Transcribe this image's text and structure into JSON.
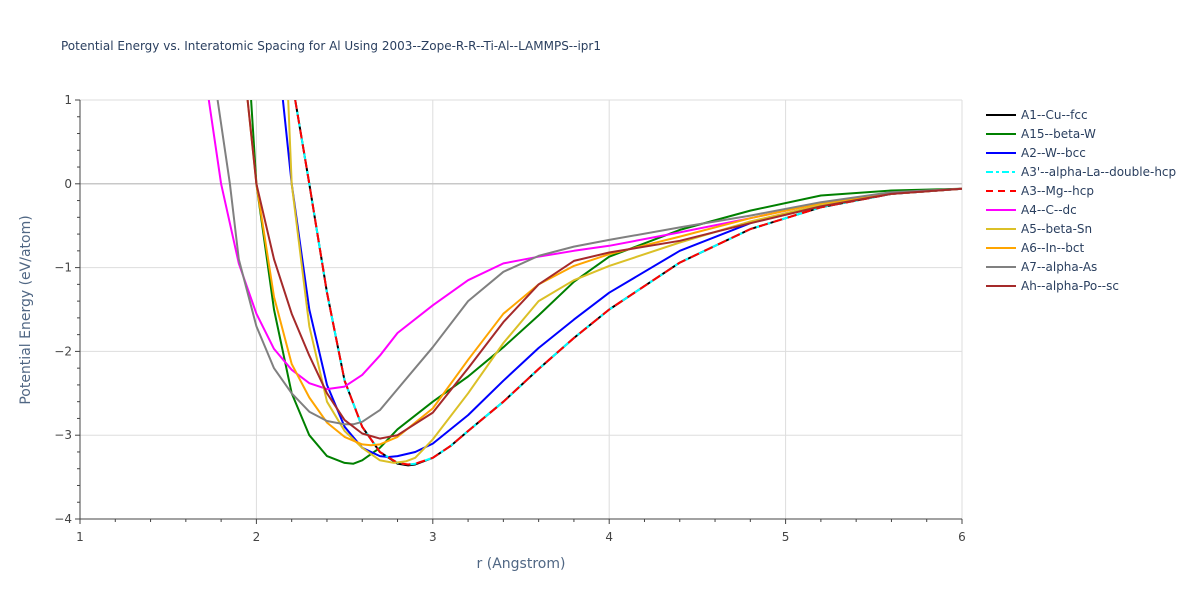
{
  "chart_data": {
    "type": "line",
    "title": "Potential Energy vs. Interatomic Spacing for Al Using 2003--Zope-R-R--Ti-Al--LAMMPS--ipr1",
    "xlabel": "r (Angstrom)",
    "ylabel": "Potential Energy (eV/atom)",
    "xlim": [
      1,
      6
    ],
    "ylim": [
      -4,
      1
    ],
    "xticks": [
      1,
      2,
      3,
      4,
      5,
      6
    ],
    "yticks": [
      1,
      0,
      -1,
      -2,
      -3,
      -4
    ],
    "ytick_labels": [
      "1",
      "0",
      "−1",
      "−2",
      "−3",
      "−4"
    ],
    "grid": true,
    "legend_position": "right",
    "series": [
      {
        "name": "A1--Cu--fcc",
        "color": "#000000",
        "dash": "solid",
        "x": [
          2.22,
          2.3,
          2.4,
          2.5,
          2.6,
          2.7,
          2.8,
          2.86,
          2.9,
          3.0,
          3.1,
          3.2,
          3.4,
          3.6,
          3.8,
          4.0,
          4.4,
          4.8,
          5.2,
          5.6,
          6.0
        ],
        "y": [
          1.0,
          0.0,
          -1.3,
          -2.35,
          -2.9,
          -3.2,
          -3.34,
          -3.36,
          -3.35,
          -3.27,
          -3.13,
          -2.95,
          -2.6,
          -2.21,
          -1.84,
          -1.5,
          -0.94,
          -0.54,
          -0.28,
          -0.12,
          -0.06
        ]
      },
      {
        "name": "A15--beta-W",
        "color": "#008000",
        "dash": "solid",
        "x": [
          1.97,
          2.0,
          2.1,
          2.2,
          2.3,
          2.4,
          2.5,
          2.55,
          2.6,
          2.7,
          2.8,
          3.0,
          3.2,
          3.4,
          3.6,
          3.8,
          4.0,
          4.4,
          4.8,
          5.2,
          5.6,
          6.0
        ],
        "y": [
          1.0,
          0.0,
          -1.5,
          -2.5,
          -3.0,
          -3.25,
          -3.33,
          -3.34,
          -3.3,
          -3.15,
          -2.93,
          -2.6,
          -2.3,
          -1.95,
          -1.57,
          -1.17,
          -0.87,
          -0.55,
          -0.32,
          -0.14,
          -0.08,
          -0.06
        ]
      },
      {
        "name": "A2--W--bcc",
        "color": "#0000ff",
        "dash": "solid",
        "x": [
          2.15,
          2.2,
          2.3,
          2.4,
          2.5,
          2.6,
          2.7,
          2.75,
          2.8,
          2.9,
          3.0,
          3.2,
          3.4,
          3.6,
          3.8,
          4.0,
          4.4,
          4.8,
          5.2,
          5.6,
          6.0
        ],
        "y": [
          1.0,
          0.0,
          -1.5,
          -2.4,
          -2.9,
          -3.15,
          -3.25,
          -3.26,
          -3.25,
          -3.2,
          -3.1,
          -2.76,
          -2.35,
          -1.96,
          -1.62,
          -1.3,
          -0.8,
          -0.47,
          -0.25,
          -0.12,
          -0.06
        ]
      },
      {
        "name": "A3'--alpha-La--double-hcp",
        "color": "#00ffff",
        "dash": "dashdot",
        "x": [
          2.22,
          2.3,
          2.4,
          2.5,
          2.6,
          2.7,
          2.8,
          2.86,
          2.9,
          3.0,
          3.1,
          3.2,
          3.4,
          3.6,
          3.8,
          4.0,
          4.4,
          4.8,
          5.2,
          5.6,
          6.0
        ],
        "y": [
          1.0,
          0.0,
          -1.3,
          -2.35,
          -2.9,
          -3.2,
          -3.33,
          -3.35,
          -3.34,
          -3.27,
          -3.13,
          -2.95,
          -2.6,
          -2.21,
          -1.84,
          -1.5,
          -0.94,
          -0.54,
          -0.28,
          -0.12,
          -0.06
        ]
      },
      {
        "name": "A3--Mg--hcp",
        "color": "#ff0000",
        "dash": "dash",
        "x": [
          2.22,
          2.3,
          2.4,
          2.5,
          2.6,
          2.7,
          2.8,
          2.86,
          2.9,
          3.0,
          3.1,
          3.2,
          3.4,
          3.6,
          3.8,
          4.0,
          4.4,
          4.8,
          5.2,
          5.6,
          6.0
        ],
        "y": [
          1.0,
          0.0,
          -1.3,
          -2.35,
          -2.9,
          -3.2,
          -3.33,
          -3.35,
          -3.34,
          -3.27,
          -3.13,
          -2.95,
          -2.6,
          -2.21,
          -1.84,
          -1.5,
          -0.94,
          -0.54,
          -0.28,
          -0.12,
          -0.06
        ]
      },
      {
        "name": "A4--C--dc",
        "color": "#ff00ff",
        "dash": "solid",
        "x": [
          1.73,
          1.8,
          1.9,
          2.0,
          2.1,
          2.2,
          2.3,
          2.4,
          2.5,
          2.6,
          2.7,
          2.8,
          3.0,
          3.2,
          3.4,
          3.6,
          3.8,
          4.0,
          4.4,
          4.8,
          5.2,
          5.6,
          6.0
        ],
        "y": [
          1.0,
          0.0,
          -0.95,
          -1.55,
          -1.97,
          -2.22,
          -2.38,
          -2.45,
          -2.42,
          -2.28,
          -2.05,
          -1.78,
          -1.45,
          -1.15,
          -0.95,
          -0.87,
          -0.8,
          -0.74,
          -0.58,
          -0.41,
          -0.23,
          -0.11,
          -0.06
        ]
      },
      {
        "name": "A5--beta-Sn",
        "color": "#dbc027",
        "dash": "solid",
        "x": [
          2.18,
          2.2,
          2.3,
          2.4,
          2.5,
          2.6,
          2.7,
          2.78,
          2.85,
          2.9,
          3.0,
          3.2,
          3.4,
          3.6,
          3.8,
          4.0,
          4.4,
          4.8,
          5.2,
          5.6,
          6.0
        ],
        "y": [
          1.0,
          0.0,
          -1.7,
          -2.6,
          -2.95,
          -3.15,
          -3.3,
          -3.33,
          -3.31,
          -3.27,
          -3.05,
          -2.5,
          -1.9,
          -1.4,
          -1.15,
          -0.98,
          -0.7,
          -0.45,
          -0.25,
          -0.12,
          -0.06
        ]
      },
      {
        "name": "A6--In--bct",
        "color": "#ffa500",
        "dash": "solid",
        "x": [
          1.95,
          2.0,
          2.1,
          2.2,
          2.3,
          2.4,
          2.5,
          2.6,
          2.65,
          2.7,
          2.8,
          3.0,
          3.2,
          3.4,
          3.6,
          3.8,
          4.0,
          4.4,
          4.8,
          5.2,
          5.6,
          6.0
        ],
        "y": [
          1.0,
          0.0,
          -1.35,
          -2.15,
          -2.55,
          -2.85,
          -3.02,
          -3.11,
          -3.12,
          -3.11,
          -3.02,
          -2.68,
          -2.1,
          -1.55,
          -1.2,
          -0.98,
          -0.84,
          -0.63,
          -0.41,
          -0.23,
          -0.11,
          -0.06
        ]
      },
      {
        "name": "A7--alpha-As",
        "color": "#808080",
        "dash": "solid",
        "x": [
          1.78,
          1.85,
          1.9,
          2.0,
          2.1,
          2.2,
          2.3,
          2.4,
          2.5,
          2.55,
          2.6,
          2.7,
          2.8,
          3.0,
          3.2,
          3.4,
          3.6,
          3.8,
          4.0,
          4.4,
          4.8,
          5.2,
          5.6,
          6.0
        ],
        "y": [
          1.0,
          0.0,
          -0.9,
          -1.7,
          -2.2,
          -2.5,
          -2.72,
          -2.83,
          -2.87,
          -2.87,
          -2.84,
          -2.7,
          -2.45,
          -1.95,
          -1.4,
          -1.05,
          -0.86,
          -0.75,
          -0.67,
          -0.52,
          -0.38,
          -0.22,
          -0.1,
          -0.06
        ]
      },
      {
        "name": "Ah--alpha-Po--sc",
        "color": "#a52a2a",
        "dash": "solid",
        "x": [
          1.95,
          2.0,
          2.1,
          2.2,
          2.3,
          2.4,
          2.5,
          2.6,
          2.7,
          2.8,
          3.0,
          3.2,
          3.4,
          3.6,
          3.8,
          4.0,
          4.4,
          4.8,
          5.2,
          5.6,
          6.0
        ],
        "y": [
          1.0,
          0.0,
          -0.9,
          -1.55,
          -2.05,
          -2.5,
          -2.82,
          -2.98,
          -3.04,
          -3.0,
          -2.73,
          -2.2,
          -1.65,
          -1.2,
          -0.92,
          -0.82,
          -0.68,
          -0.47,
          -0.27,
          -0.12,
          -0.06
        ]
      }
    ]
  }
}
